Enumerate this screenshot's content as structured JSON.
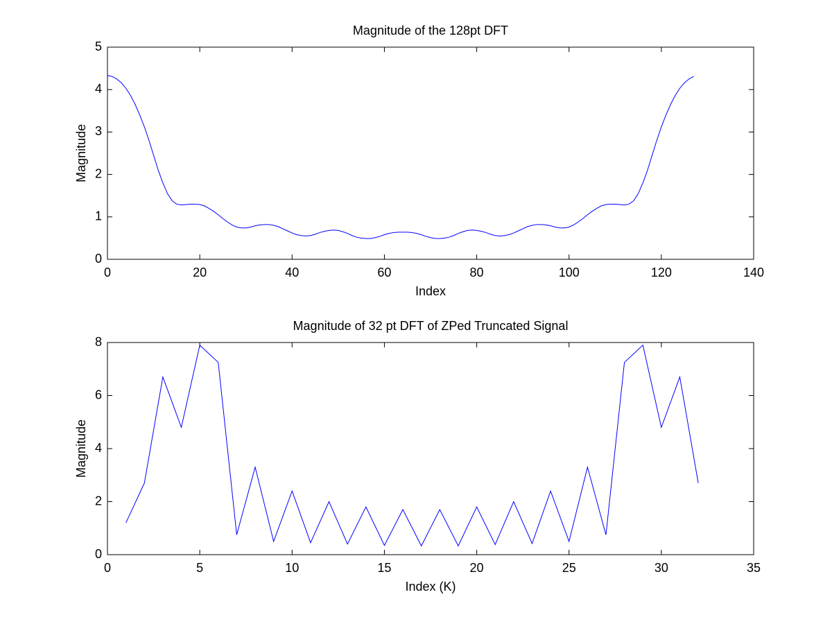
{
  "chart_data": [
    {
      "type": "line",
      "title": "Magnitude of the 128pt DFT",
      "x_label": "Index",
      "y_label": "Magnitude",
      "x": [
        0,
        1,
        2,
        3,
        4,
        5,
        6,
        7,
        8,
        9,
        10,
        11,
        12,
        13,
        14,
        15,
        16,
        17,
        18,
        19,
        20,
        21,
        22,
        23,
        24,
        25,
        26,
        27,
        28,
        29,
        30,
        31,
        32,
        33,
        34,
        35,
        36,
        37,
        38,
        39,
        40,
        41,
        42,
        43,
        44,
        45,
        46,
        47,
        48,
        49,
        50,
        51,
        52,
        53,
        54,
        55,
        56,
        57,
        58,
        59,
        60,
        61,
        62,
        63,
        64,
        65,
        66,
        67,
        68,
        69,
        70,
        71,
        72,
        73,
        74,
        75,
        76,
        77,
        78,
        79,
        80,
        81,
        82,
        83,
        84,
        85,
        86,
        87,
        88,
        89,
        90,
        91,
        92,
        93,
        94,
        95,
        96,
        97,
        98,
        99,
        100,
        101,
        102,
        103,
        104,
        105,
        106,
        107,
        108,
        109,
        110,
        111,
        112,
        113,
        114,
        115,
        116,
        117,
        118,
        119,
        120,
        121,
        122,
        123,
        124,
        125,
        126,
        127
      ],
      "values": [
        4.33,
        4.31,
        4.25,
        4.16,
        4.03,
        3.86,
        3.65,
        3.4,
        3.12,
        2.8,
        2.45,
        2.1,
        1.8,
        1.55,
        1.38,
        1.3,
        1.28,
        1.29,
        1.3,
        1.3,
        1.29,
        1.26,
        1.2,
        1.13,
        1.05,
        0.96,
        0.88,
        0.81,
        0.76,
        0.74,
        0.74,
        0.76,
        0.79,
        0.81,
        0.82,
        0.82,
        0.8,
        0.77,
        0.72,
        0.67,
        0.62,
        0.58,
        0.56,
        0.55,
        0.56,
        0.59,
        0.63,
        0.66,
        0.68,
        0.69,
        0.68,
        0.65,
        0.61,
        0.56,
        0.52,
        0.5,
        0.49,
        0.49,
        0.51,
        0.54,
        0.58,
        0.61,
        0.63,
        0.64,
        0.64,
        0.64,
        0.63,
        0.61,
        0.58,
        0.54,
        0.51,
        0.49,
        0.49,
        0.5,
        0.52,
        0.56,
        0.61,
        0.65,
        0.68,
        0.69,
        0.68,
        0.66,
        0.63,
        0.59,
        0.56,
        0.55,
        0.56,
        0.58,
        0.62,
        0.67,
        0.72,
        0.77,
        0.8,
        0.82,
        0.82,
        0.81,
        0.79,
        0.76,
        0.74,
        0.74,
        0.76,
        0.81,
        0.88,
        0.96,
        1.05,
        1.13,
        1.2,
        1.26,
        1.29,
        1.3,
        1.3,
        1.29,
        1.28,
        1.3,
        1.38,
        1.55,
        1.8,
        2.1,
        2.45,
        2.8,
        3.12,
        3.4,
        3.65,
        3.86,
        4.03,
        4.16,
        4.25,
        4.31
      ],
      "color": "#0000ff",
      "xlim": [
        0,
        140
      ],
      "xticks": [
        0,
        20,
        40,
        60,
        80,
        100,
        120,
        140
      ],
      "ylim": [
        0,
        5
      ],
      "yticks": [
        0,
        1,
        2,
        3,
        4,
        5
      ]
    },
    {
      "type": "line",
      "title": "Magnitude of 32 pt DFT of ZPed Truncated Signal",
      "x_label": "Index (K)",
      "y_label": "Magnitude",
      "x": [
        1,
        2,
        3,
        4,
        5,
        6,
        7,
        8,
        9,
        10,
        11,
        12,
        13,
        14,
        15,
        16,
        17,
        18,
        19,
        20,
        21,
        22,
        23,
        24,
        25,
        26,
        27,
        28,
        29,
        30,
        31,
        32
      ],
      "values": [
        1.2,
        2.7,
        6.7,
        4.8,
        7.9,
        7.25,
        0.75,
        3.3,
        0.5,
        2.4,
        0.45,
        2.0,
        0.4,
        1.8,
        0.35,
        1.7,
        0.33,
        1.7,
        0.33,
        1.8,
        0.38,
        2.0,
        0.42,
        2.4,
        0.5,
        3.3,
        0.75,
        7.25,
        7.9,
        4.8,
        6.7,
        2.7
      ],
      "color": "#0000ff",
      "xlim": [
        0,
        35
      ],
      "xticks": [
        0,
        5,
        10,
        15,
        20,
        25,
        30,
        35
      ],
      "ylim": [
        0,
        8
      ],
      "yticks": [
        0,
        2,
        4,
        6,
        8
      ]
    }
  ]
}
